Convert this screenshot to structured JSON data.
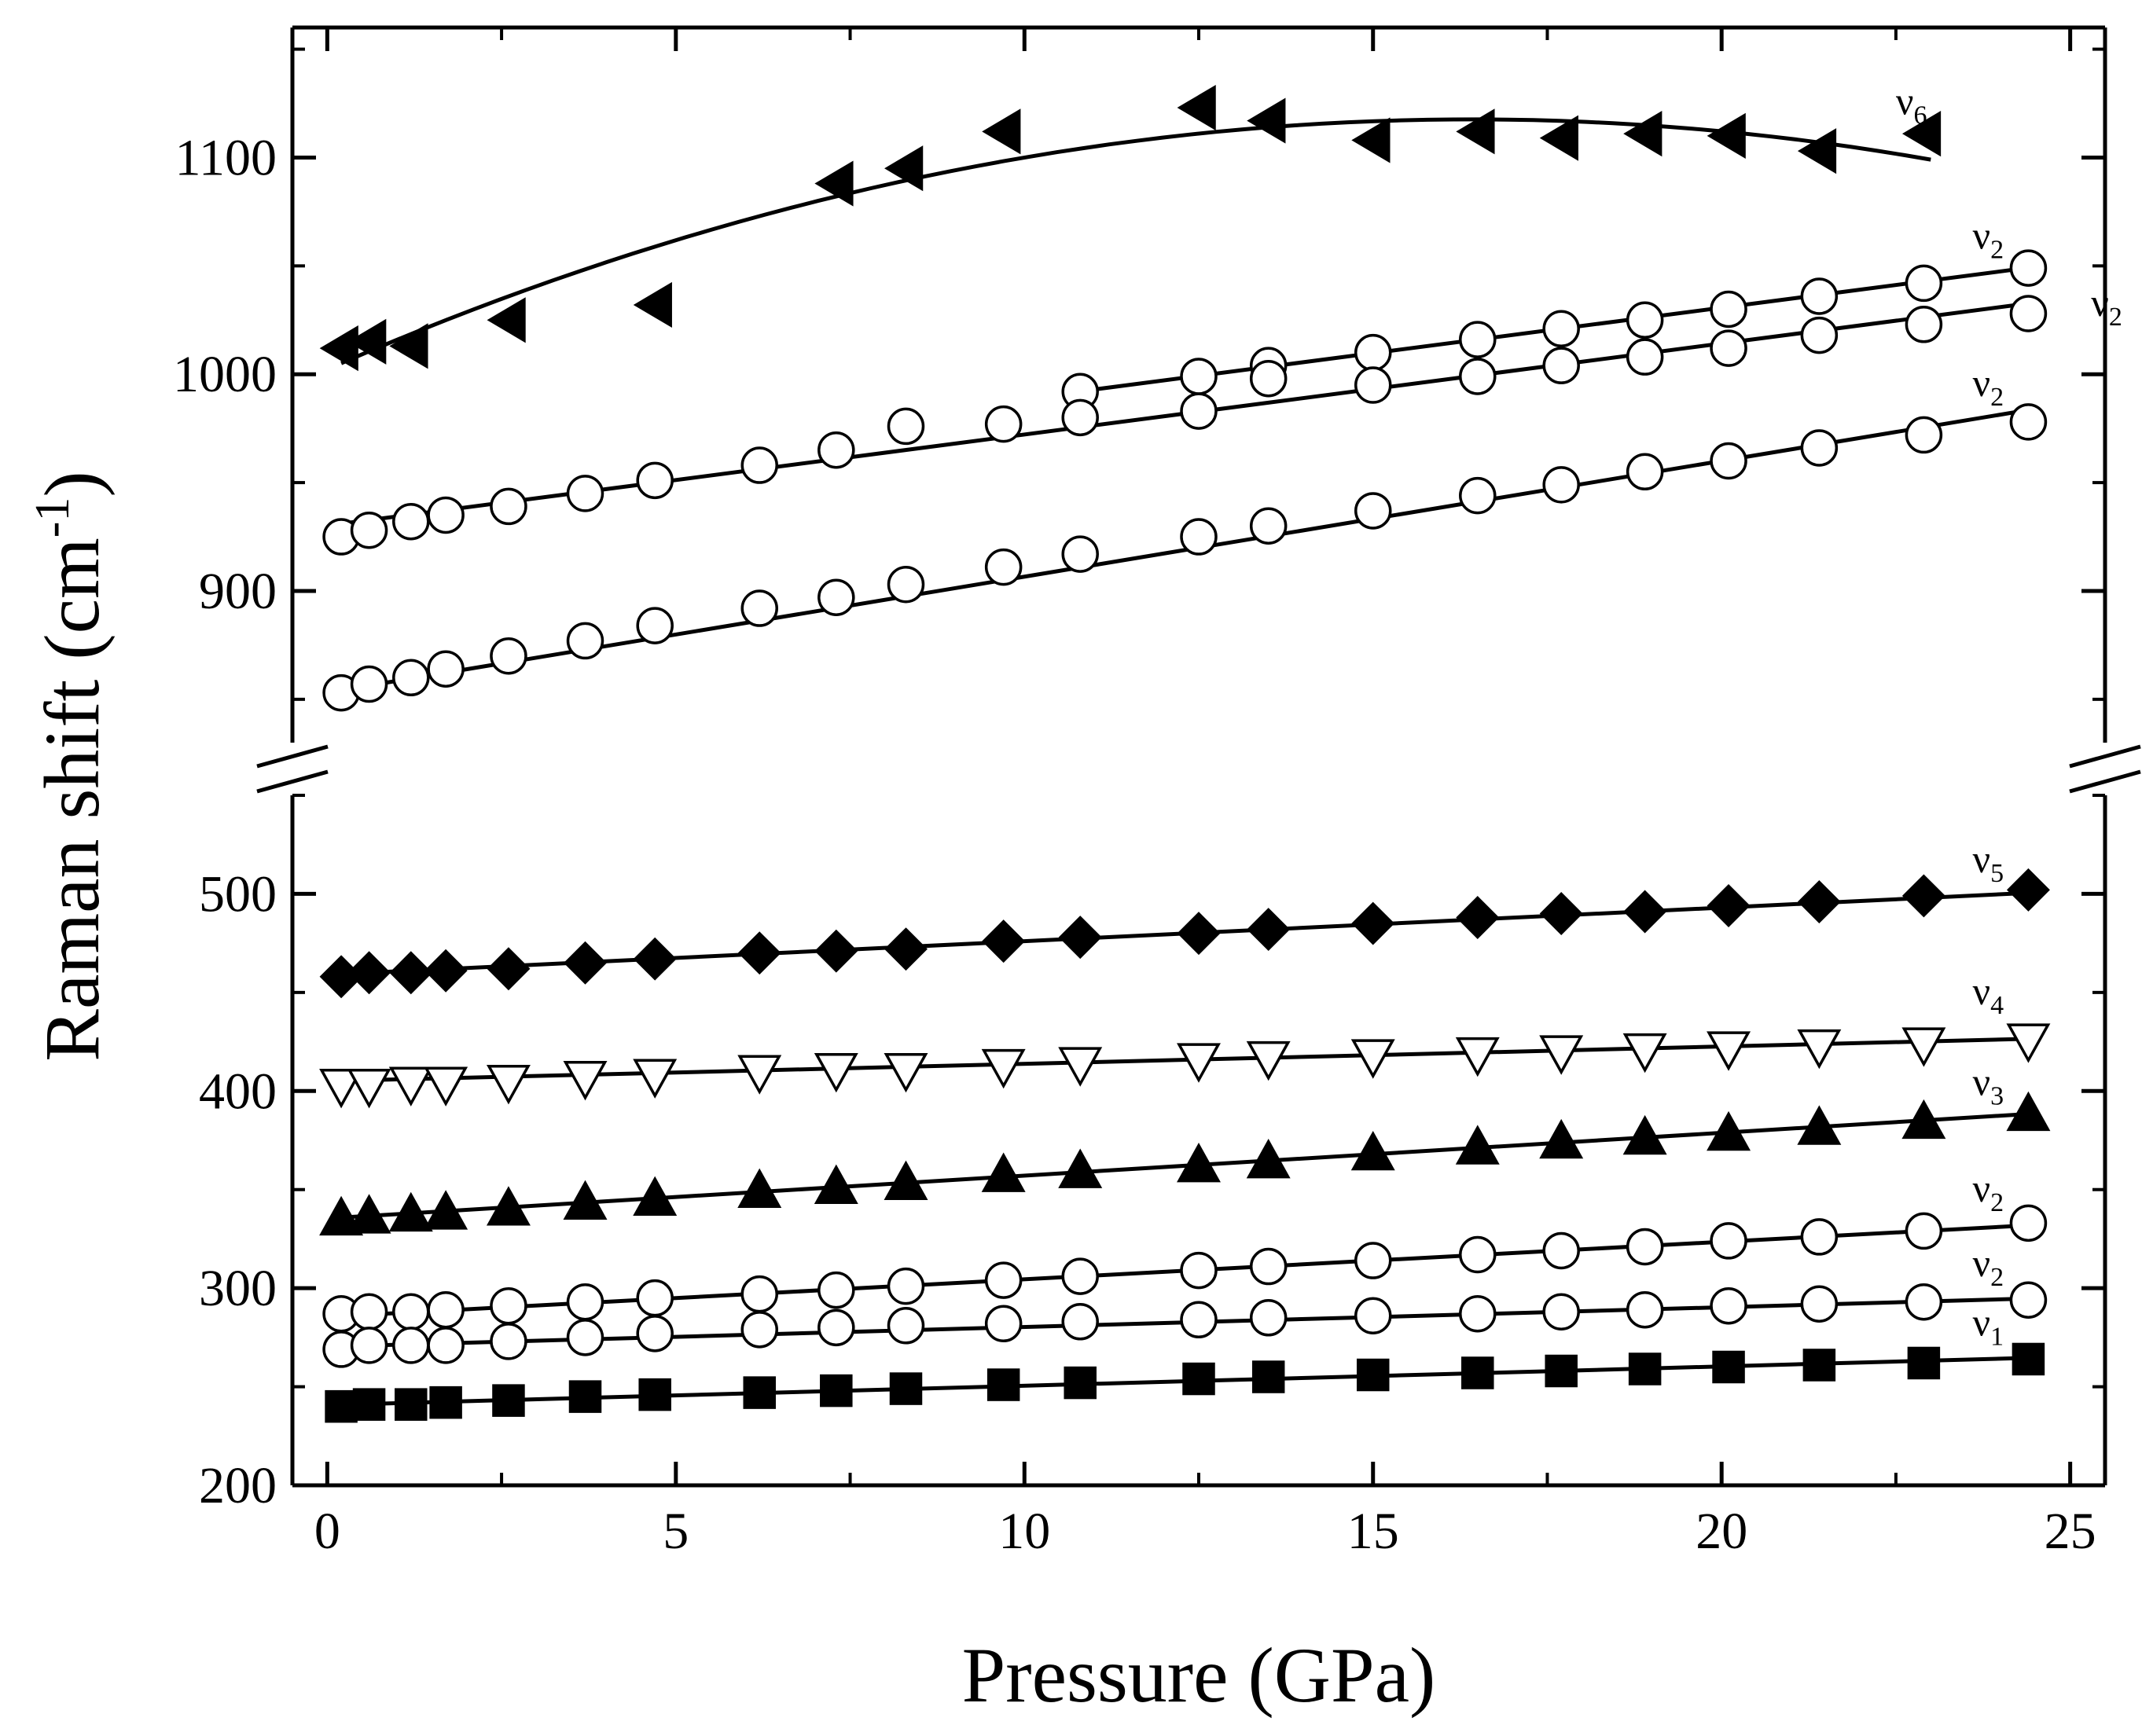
{
  "chart_data": {
    "type": "scatter",
    "title": "",
    "xlabel": "Pressure (GPa)",
    "ylabel": {
      "main": "Raman shift (cm",
      "superscript": "-1",
      "close": ")"
    },
    "xlim": [
      -0.5,
      25.5
    ],
    "ylim_lower": [
      200,
      550
    ],
    "ylim_upper": [
      830,
      1160
    ],
    "axis_break": true,
    "x_ticks": [
      {
        "value": 0,
        "label": "0"
      },
      {
        "value": 5,
        "label": "5"
      },
      {
        "value": 10,
        "label": "10"
      },
      {
        "value": 15,
        "label": "15"
      },
      {
        "value": 20,
        "label": "20"
      },
      {
        "value": 25,
        "label": "25"
      }
    ],
    "y_ticks_lower": [
      {
        "value": 200,
        "label": "200"
      },
      {
        "value": 300,
        "label": "300"
      },
      {
        "value": 400,
        "label": "400"
      },
      {
        "value": 500,
        "label": "500"
      }
    ],
    "y_ticks_upper": [
      {
        "value": 900,
        "label": "900"
      },
      {
        "value": 1000,
        "label": "1000"
      },
      {
        "value": 1100,
        "label": "1100"
      }
    ],
    "series": [
      {
        "name": "ν6",
        "label_main": "ν",
        "label_sub": "6",
        "marker": "triangle-left",
        "filled": true,
        "axis": "upper",
        "x": [
          0.2,
          0.6,
          1.2,
          2.6,
          4.7,
          7.3,
          8.3,
          9.7,
          12.5,
          13.5,
          15.0,
          16.5,
          17.7,
          18.9,
          20.1,
          21.4,
          22.9
        ],
        "y": [
          1012,
          1015,
          1013,
          1025,
          1032,
          1088,
          1095,
          1112,
          1123,
          1117,
          1108,
          1112,
          1109,
          1111,
          1110,
          1103,
          1111
        ],
        "fit": {
          "type": "poly2",
          "x_range": [
            0.2,
            23.0
          ],
          "coef": [
            1002.3,
            14.05,
            -0.428
          ]
        },
        "label_pos": [
          22.5,
          1120
        ]
      },
      {
        "name": "ν2",
        "label_main": "ν",
        "label_sub": "2",
        "marker": "circle",
        "filled": false,
        "axis": "upper",
        "x": [
          10.8,
          12.5,
          13.5,
          15.0,
          16.5,
          17.7,
          18.9,
          20.1,
          21.4,
          22.9,
          24.4
        ],
        "y": [
          992,
          999,
          1004,
          1010,
          1016,
          1021,
          1025,
          1030,
          1036,
          1042,
          1049
        ],
        "fit": {
          "type": "linear",
          "x_range": [
            10.8,
            24.4
          ],
          "slope": 4.19,
          "intercept": 946.9
        },
        "label_pos": [
          23.6,
          1058
        ]
      },
      {
        "name": "ν2",
        "label_main": "ν",
        "label_sub": "2",
        "marker": "circle",
        "filled": false,
        "axis": "upper",
        "x": [
          0.2,
          0.6,
          1.2,
          1.7,
          2.6,
          3.7,
          4.7,
          6.2,
          7.3,
          8.3,
          9.7,
          10.8,
          12.5,
          13.5,
          15.0,
          16.5,
          17.7,
          18.9,
          20.1,
          21.4,
          22.9,
          24.4
        ],
        "y": [
          925,
          928,
          932,
          935,
          939,
          945,
          951,
          958,
          965,
          976,
          977,
          980,
          983,
          998,
          995,
          999,
          1004,
          1008,
          1012,
          1018,
          1023,
          1028
        ],
        "fit": {
          "type": "linear",
          "x_range": [
            0.2,
            24.4
          ],
          "slope": 4.2,
          "intercept": 930.2
        },
        "label_pos": [
          25.3,
          1027
        ]
      },
      {
        "name": "ν2",
        "label_main": "ν",
        "label_sub": "2",
        "marker": "circle",
        "filled": false,
        "axis": "upper",
        "x": [
          0.2,
          0.6,
          1.2,
          1.7,
          2.6,
          3.7,
          4.7,
          6.2,
          7.3,
          8.3,
          9.7,
          10.8,
          12.5,
          13.5,
          15.0,
          16.5,
          17.7,
          18.9,
          20.1,
          21.4,
          22.9,
          24.4
        ],
        "y": [
          853,
          857,
          860,
          864,
          870,
          877,
          884,
          892,
          897,
          903,
          911,
          917,
          925,
          930,
          937,
          944,
          949,
          955,
          960,
          966,
          972,
          978
        ],
        "fit": {
          "type": "linear",
          "x_range": [
            0.2,
            24.4
          ],
          "slope": 5.34,
          "intercept": 853.2
        },
        "label_pos": [
          23.6,
          990
        ]
      },
      {
        "name": "ν5",
        "label_main": "ν",
        "label_sub": "5",
        "marker": "diamond",
        "filled": true,
        "axis": "lower",
        "x": [
          0.2,
          0.6,
          1.2,
          1.7,
          2.6,
          3.7,
          4.7,
          6.2,
          7.3,
          8.3,
          9.7,
          10.8,
          12.5,
          13.5,
          15.0,
          16.5,
          17.7,
          18.9,
          20.1,
          21.4,
          22.9,
          24.4
        ],
        "y": [
          458,
          460,
          460,
          461,
          462,
          465,
          467,
          470,
          471,
          472,
          476,
          478,
          480,
          482,
          485,
          488,
          490,
          491,
          494,
          496,
          499,
          502
        ],
        "fit": {
          "type": "linear",
          "x_range": [
            0.2,
            24.4
          ],
          "slope": 1.7,
          "intercept": 459.0
        },
        "label_pos": [
          23.6,
          511
        ]
      },
      {
        "name": "ν4",
        "label_main": "ν",
        "label_sub": "4",
        "marker": "triangle-down",
        "filled": false,
        "axis": "lower",
        "x": [
          0.2,
          0.6,
          1.2,
          1.7,
          2.6,
          3.7,
          4.7,
          6.2,
          7.3,
          8.3,
          9.7,
          10.8,
          12.5,
          13.5,
          15.0,
          16.5,
          17.7,
          18.9,
          20.1,
          21.4,
          22.9,
          24.4
        ],
        "y": [
          403,
          403,
          404,
          404,
          405,
          407,
          408,
          410,
          411,
          411,
          413,
          414,
          416,
          417,
          418,
          419,
          420,
          421,
          422,
          423,
          424,
          426
        ],
        "fit": {
          "type": "linear",
          "x_range": [
            0.2,
            24.4
          ],
          "slope": 0.88,
          "intercept": 405.0
        },
        "label_pos": [
          23.6,
          444
        ]
      },
      {
        "name": "ν3",
        "label_main": "ν",
        "label_sub": "3",
        "marker": "triangle-up",
        "filled": true,
        "axis": "lower",
        "x": [
          0.2,
          0.6,
          1.2,
          1.7,
          2.6,
          3.7,
          4.7,
          6.2,
          7.3,
          8.3,
          9.7,
          10.8,
          12.5,
          13.5,
          15.0,
          16.5,
          17.7,
          18.9,
          20.1,
          21.4,
          22.9,
          24.4
        ],
        "y": [
          335,
          336,
          337,
          338,
          340,
          343,
          345,
          349,
          351,
          353,
          357,
          359,
          362,
          364,
          368,
          371,
          374,
          376,
          378,
          381,
          384,
          388
        ],
        "fit": {
          "type": "linear",
          "x_range": [
            0.2,
            24.4
          ],
          "slope": 2.17,
          "intercept": 335.4
        },
        "label_pos": [
          23.6,
          398
        ]
      },
      {
        "name": "ν2",
        "label_main": "ν",
        "label_sub": "2",
        "marker": "circle",
        "filled": false,
        "axis": "lower",
        "x": [
          0.2,
          0.6,
          1.2,
          1.7,
          2.6,
          3.7,
          4.7,
          6.2,
          7.3,
          8.3,
          9.7,
          10.8,
          12.5,
          13.5,
          15.0,
          16.5,
          17.7,
          18.9,
          20.1,
          21.4,
          22.9,
          24.4
        ],
        "y": [
          287,
          288,
          288,
          289,
          291,
          293,
          295,
          297,
          299,
          301,
          304,
          306,
          309,
          311,
          314,
          317,
          319,
          321,
          324,
          326,
          329,
          333
        ],
        "fit": {
          "type": "linear",
          "x_range": [
            0.2,
            24.4
          ],
          "slope": 1.9,
          "intercept": 285.5
        },
        "label_pos": [
          23.6,
          344
        ]
      },
      {
        "name": "ν2",
        "label_main": "ν",
        "label_sub": "2",
        "marker": "circle",
        "filled": false,
        "axis": "lower",
        "x": [
          0.2,
          0.6,
          1.2,
          1.7,
          2.6,
          3.7,
          4.7,
          6.2,
          7.3,
          8.3,
          9.7,
          10.8,
          12.5,
          13.5,
          15.0,
          16.5,
          17.7,
          18.9,
          20.1,
          21.4,
          22.9,
          24.4
        ],
        "y": [
          269,
          271,
          271,
          271,
          273,
          275,
          277,
          279,
          280,
          281,
          282,
          283,
          284,
          285,
          286,
          287,
          288,
          289,
          291,
          292,
          293,
          294
        ],
        "fit": {
          "type": "linear",
          "x_range": [
            0.2,
            24.4
          ],
          "slope": 1.0,
          "intercept": 270.3
        },
        "label_pos": [
          23.6,
          306
        ]
      },
      {
        "name": "ν1",
        "label_main": "ν",
        "label_sub": "1",
        "marker": "square",
        "filled": true,
        "axis": "lower",
        "x": [
          0.2,
          0.6,
          1.2,
          1.7,
          2.6,
          3.7,
          4.7,
          6.2,
          7.3,
          8.3,
          9.7,
          10.8,
          12.5,
          13.5,
          15.0,
          16.5,
          17.7,
          18.9,
          20.1,
          21.4,
          22.9,
          24.4
        ],
        "y": [
          240,
          241,
          241,
          242,
          243,
          245,
          246,
          247,
          248,
          249,
          251,
          252,
          254,
          255,
          256,
          257,
          258,
          259,
          260,
          261,
          262,
          264
        ],
        "fit": {
          "type": "linear",
          "x_range": [
            0.2,
            24.4
          ],
          "slope": 0.98,
          "intercept": 240.7
        },
        "label_pos": [
          23.6,
          276
        ]
      }
    ]
  }
}
